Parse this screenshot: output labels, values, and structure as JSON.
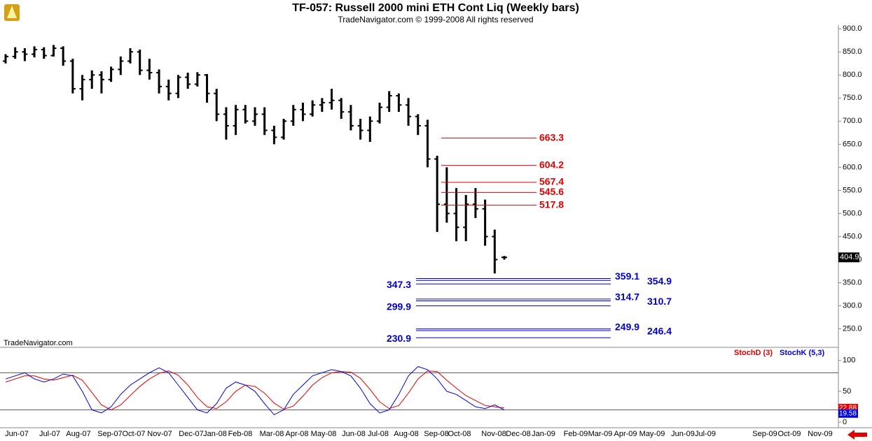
{
  "chart_data": [
    {
      "type": "ohlc",
      "title": "TF-057:  Russell 2000 mini ETH Cont Liq  (Weekly bars)",
      "subtitle": "TradeNavigator.com © 1999-2008 All rights reserved",
      "watermark": "TradeNavigator.com",
      "color": "#000000",
      "values": [
        [
          830,
          845,
          825,
          840
        ],
        [
          840,
          860,
          835,
          850
        ],
        [
          850,
          858,
          830,
          845
        ],
        [
          845,
          862,
          838,
          855
        ],
        [
          855,
          860,
          835,
          842
        ],
        [
          842,
          865,
          840,
          858
        ],
        [
          858,
          862,
          820,
          830
        ],
        [
          830,
          835,
          760,
          770
        ],
        [
          770,
          800,
          745,
          790
        ],
        [
          790,
          810,
          770,
          800
        ],
        [
          800,
          808,
          760,
          790
        ],
        [
          790,
          818,
          785,
          812
        ],
        [
          812,
          840,
          800,
          830
        ],
        [
          830,
          858,
          825,
          850
        ],
        [
          850,
          855,
          800,
          810
        ],
        [
          810,
          835,
          790,
          805
        ],
        [
          805,
          812,
          760,
          775
        ],
        [
          775,
          790,
          745,
          760
        ],
        [
          760,
          800,
          750,
          795
        ],
        [
          795,
          805,
          770,
          780
        ],
        [
          780,
          806,
          775,
          800
        ],
        [
          800,
          802,
          740,
          760
        ],
        [
          760,
          770,
          700,
          715
        ],
        [
          715,
          730,
          660,
          690
        ],
        [
          690,
          735,
          670,
          725
        ],
        [
          725,
          735,
          695,
          700
        ],
        [
          700,
          730,
          690,
          715
        ],
        [
          715,
          730,
          670,
          680
        ],
        [
          680,
          690,
          650,
          665
        ],
        [
          665,
          705,
          660,
          700
        ],
        [
          700,
          735,
          690,
          725
        ],
        [
          725,
          740,
          700,
          715
        ],
        [
          715,
          745,
          710,
          735
        ],
        [
          735,
          750,
          720,
          740
        ],
        [
          740,
          770,
          725,
          745
        ],
        [
          745,
          750,
          705,
          720
        ],
        [
          720,
          735,
          680,
          690
        ],
        [
          690,
          705,
          660,
          680
        ],
        [
          680,
          710,
          655,
          700
        ],
        [
          700,
          740,
          695,
          730
        ],
        [
          730,
          765,
          720,
          755
        ],
        [
          755,
          760,
          720,
          735
        ],
        [
          735,
          750,
          690,
          710
        ],
        [
          710,
          715,
          670,
          690
        ],
        [
          690,
          703,
          600,
          618
        ],
        [
          618,
          625,
          460,
          520
        ],
        [
          520,
          600,
          480,
          500
        ],
        [
          500,
          555,
          440,
          470
        ],
        [
          470,
          540,
          440,
          520
        ],
        [
          520,
          555,
          490,
          510
        ],
        [
          510,
          530,
          430,
          450
        ],
        [
          450,
          465,
          370,
          400
        ],
        [
          405,
          408,
          400,
          404.9
        ]
      ],
      "last_price": 404.9,
      "x_axis_labels": [
        "Jun-07",
        "Jul-07",
        "Aug-07",
        "Sep-07",
        "Oct-07",
        "Nov-07",
        "Dec-07",
        "Jan-08",
        "Feb-08",
        "Mar-08",
        "Apr-08",
        "May-08",
        "Jun-08",
        "Jul-08",
        "Aug-08",
        "Sep-08",
        "Oct-08",
        "Nov-08",
        "Dec-08",
        "Jan-09",
        "Feb-09",
        "Mar-09",
        "Apr-09",
        "May-09",
        "Jun-09",
        "Jul-09",
        "Sep-09",
        "Oct-09",
        "Nov-09"
      ],
      "ylim": [
        210,
        920
      ],
      "yticks": [
        {
          "value": 900,
          "label": "900.0"
        },
        {
          "value": 850,
          "label": "850.0"
        },
        {
          "value": 800,
          "label": "800.0"
        },
        {
          "value": 750,
          "label": "750.0"
        },
        {
          "value": 700,
          "label": "700.0"
        },
        {
          "value": 650,
          "label": "650.0"
        },
        {
          "value": 600,
          "label": "600.0"
        },
        {
          "value": 550,
          "label": "550.0"
        },
        {
          "value": 500,
          "label": "500.0"
        },
        {
          "value": 450,
          "label": "450.0"
        },
        {
          "value": 400,
          "label": "400.0"
        },
        {
          "value": 350,
          "label": "350.0"
        },
        {
          "value": 300,
          "label": "300.0"
        },
        {
          "value": 250,
          "label": "250.0"
        }
      ],
      "resistance_levels": {
        "color": "#e00000",
        "values": [
          663.3,
          604.2,
          567.4,
          545.6,
          517.8
        ]
      },
      "support_levels": {
        "color": "#0000c8",
        "groups": [
          [
            359.1,
            354.9,
            347.3
          ],
          [
            314.7,
            310.7,
            299.9
          ],
          [
            249.9,
            246.4,
            230.9
          ]
        ]
      }
    },
    {
      "type": "line",
      "series": [
        {
          "name": "StochD (3)",
          "color": "#e00000",
          "values": [
            65,
            70,
            75,
            75,
            70,
            68,
            72,
            76,
            68,
            48,
            28,
            20,
            28,
            43,
            58,
            70,
            79,
            83,
            76,
            60,
            40,
            25,
            22,
            33,
            50,
            60,
            58,
            47,
            31,
            21,
            26,
            42,
            60,
            72,
            80,
            82,
            81,
            71,
            53,
            33,
            22,
            27,
            47,
            70,
            83,
            82,
            68,
            55,
            43,
            35,
            27,
            25,
            22.88
          ]
        },
        {
          "name": "StochK (5,3)",
          "color": "#0000e0",
          "values": [
            70,
            75,
            80,
            70,
            65,
            70,
            78,
            75,
            50,
            20,
            15,
            25,
            45,
            60,
            70,
            80,
            88,
            80,
            60,
            40,
            20,
            15,
            30,
            55,
            65,
            60,
            50,
            30,
            12,
            20,
            45,
            60,
            75,
            80,
            85,
            82,
            75,
            55,
            30,
            15,
            20,
            45,
            75,
            90,
            85,
            70,
            50,
            45,
            35,
            25,
            22,
            28,
            19.58
          ]
        }
      ],
      "ylim": [
        -9,
        120
      ],
      "yticks": [
        100,
        50,
        0
      ],
      "reference_lines": [
        80,
        20
      ]
    }
  ]
}
